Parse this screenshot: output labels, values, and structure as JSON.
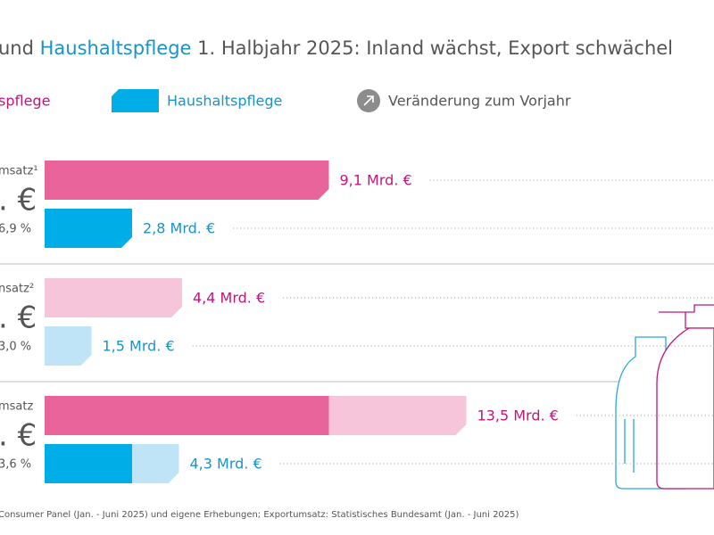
{
  "chart_data": {
    "type": "bar",
    "title": {
      "lead": "und",
      "highlight": "Haushaltspflege",
      "rest": "1. Halbjahr 2025: Inland wächst, Export schwächel"
    },
    "change_legend": "Veränderung zum Vorjahr",
    "categories": [
      "msatz¹",
      "nsatz²",
      "msatz"
    ],
    "totals": [
      ". €",
      ". €",
      ". €"
    ],
    "changes": [
      "6,9 %",
      "3,0 %",
      "3,6 %"
    ],
    "series": [
      {
        "name": "spflege",
        "color": "#e8649b",
        "light_color": "#f7c5da",
        "text_color": "#c0177a",
        "values": [
          9.1,
          4.4,
          13.5
        ],
        "value_labels": [
          "9,1 Mrd. €",
          "4,4 Mrd. €",
          "13,5 Mrd. €"
        ]
      },
      {
        "name": "Haushaltspflege",
        "color": "#00ade6",
        "light_color": "#bfe4f7",
        "text_color": "#1a93c8",
        "values": [
          2.8,
          1.5,
          4.3
        ],
        "value_labels": [
          "2,8 Mrd. €",
          "1,5 Mrd. €",
          "4,3 Mrd. €"
        ]
      }
    ],
    "footnote": "Consumer Panel (Jan. - Juni 2025) und eigene Erhebungen; Exportumsatz: Statistisches Bundesamt (Jan. - Juni 2025)"
  }
}
